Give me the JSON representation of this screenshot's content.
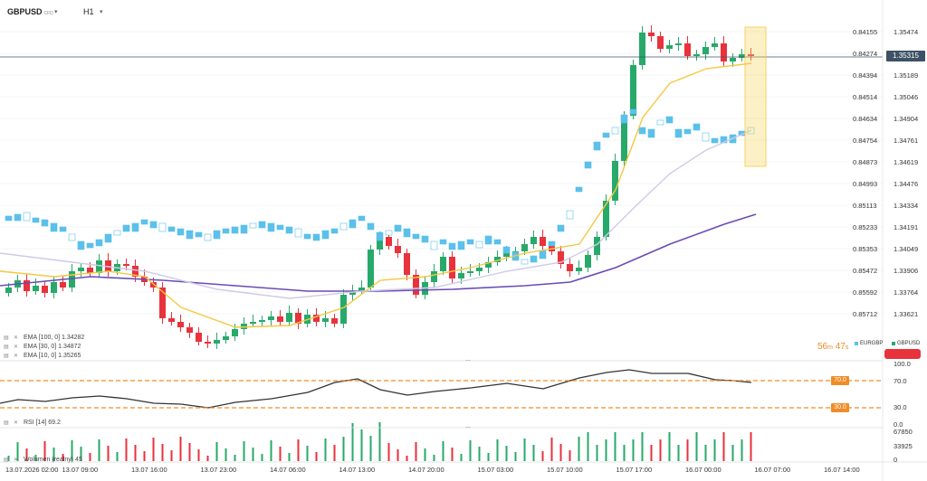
{
  "header": {
    "symbol": "GBPUSD",
    "symbol_suffix": "CFD",
    "timeframe": "H1"
  },
  "price_axis_left": [
    "0.84155",
    "0.84274",
    "0.84394",
    "0.84514",
    "0.84634",
    "0.84754",
    "0.84873",
    "0.84993",
    "0.85113",
    "0.85233",
    "0.85353",
    "0.85472",
    "0.85592",
    "0.85712"
  ],
  "price_axis_right": [
    "1.35474",
    "1.35315",
    "1.35189",
    "1.35046",
    "1.34904",
    "1.34761",
    "1.34619",
    "1.34476",
    "1.34334",
    "1.34191",
    "1.34049",
    "1.33906",
    "1.33764",
    "1.33621"
  ],
  "current_price": "1.35315",
  "indicators": [
    {
      "label": "EMA [100, 0] 1.34282",
      "color": "#6a4bb5"
    },
    {
      "label": "EMA [30, 0] 1.34872",
      "color": "#c7c3e0"
    },
    {
      "label": "EMA [10, 0] 1.35265",
      "color": "#f5c842"
    }
  ],
  "countdown": {
    "minutes": "56",
    "min_unit": "m",
    "seconds": "47",
    "sec_unit": "s"
  },
  "compare_tags": [
    {
      "label": "EURGBP",
      "color": "#5bc0eb"
    },
    {
      "label": "GBPUSD",
      "color": "#27a96a"
    }
  ],
  "rsi": {
    "label": "RSI [14] 69.2",
    "axis": [
      "100.0",
      "70.0",
      "30.0",
      "0.0"
    ],
    "upper": "70.0",
    "lower": "30.0"
  },
  "volume": {
    "label": "Wolumen (realny) 45",
    "axis": [
      "67850",
      "33925",
      "0"
    ]
  },
  "time_axis": [
    "13.07.2026 02:00",
    "13.07 09:00",
    "13.07 16:00",
    "13.07 23:00",
    "14.07 06:00",
    "14.07 13:00",
    "14.07 20:00",
    "15.07 03:00",
    "15.07 10:00",
    "15.07 17:00",
    "16.07 00:00",
    "16.07 07:00",
    "16.07 14:00"
  ],
  "colors": {
    "up": "#27a96a",
    "down": "#e8323c",
    "compare": "#5bc0eb",
    "rsi_level": "#f08c28"
  }
}
